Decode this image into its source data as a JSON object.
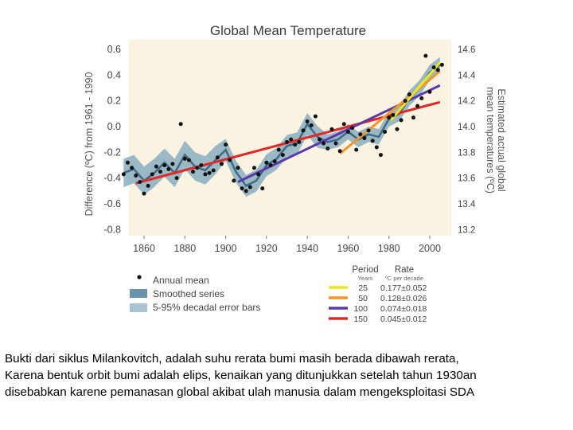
{
  "chart_data": {
    "type": "line",
    "title": "Global Mean Temperature",
    "ylabel": "Difference (ºC) from 1961 - 1990",
    "ylabel_right": [
      "Estimated actual global",
      "mean temperatures (ºC)"
    ],
    "xlim": [
      1850,
      2006
    ],
    "ylim": [
      -0.8,
      0.6
    ],
    "x_ticks": [
      "1860",
      "1880",
      "1900",
      "1920",
      "1940",
      "1960",
      "1980",
      "2000"
    ],
    "y_ticks": [
      "0.6",
      "0.4",
      "0.2",
      "0.0",
      "-0.2",
      "-0.4",
      "-0.6",
      "-0.8"
    ],
    "y_ticks_right": [
      "14.6",
      "14.4",
      "14.2",
      "14.0",
      "13.8",
      "13.6",
      "13.4",
      "13.2"
    ],
    "legend_left": [
      "Annual mean",
      "Smoothed series",
      "5-95% decadal error bars"
    ],
    "legend_right": {
      "period_header": "Period",
      "period_sub": "Years",
      "rate_header": "Rate",
      "rate_sub": "ºC per decade",
      "rows": [
        {
          "years": "25",
          "rate": "0.177±0.052",
          "color": "#f0e81e"
        },
        {
          "years": "50",
          "rate": "0.128±0.026",
          "color": "#f0962a"
        },
        {
          "years": "100",
          "rate": "0.074±0.018",
          "color": "#5a3aa8"
        },
        {
          "years": "150",
          "rate": "0.045±0.012",
          "color": "#e02828"
        }
      ]
    },
    "series": [
      {
        "name": "Smoothed series",
        "x": [
          1850,
          1855,
          1860,
          1865,
          1870,
          1875,
          1880,
          1885,
          1890,
          1895,
          1900,
          1905,
          1910,
          1915,
          1920,
          1925,
          1930,
          1935,
          1940,
          1945,
          1950,
          1955,
          1960,
          1965,
          1970,
          1975,
          1980,
          1985,
          1990,
          1995,
          2000,
          2005
        ],
        "values": [
          -0.36,
          -0.33,
          -0.42,
          -0.36,
          -0.28,
          -0.36,
          -0.22,
          -0.31,
          -0.34,
          -0.26,
          -0.18,
          -0.35,
          -0.46,
          -0.42,
          -0.3,
          -0.25,
          -0.15,
          -0.13,
          0.02,
          -0.08,
          -0.12,
          -0.1,
          -0.04,
          -0.1,
          -0.06,
          -0.08,
          0.06,
          0.1,
          0.22,
          0.3,
          0.42,
          0.48
        ]
      },
      {
        "name": "Annual mean",
        "x": [
          1850,
          1852,
          1854,
          1856,
          1858,
          1860,
          1862,
          1864,
          1866,
          1868,
          1870,
          1872,
          1874,
          1876,
          1878,
          1880,
          1882,
          1884,
          1886,
          1888,
          1890,
          1892,
          1894,
          1896,
          1898,
          1900,
          1902,
          1904,
          1906,
          1908,
          1910,
          1912,
          1914,
          1916,
          1918,
          1920,
          1922,
          1924,
          1926,
          1928,
          1930,
          1932,
          1934,
          1936,
          1938,
          1940,
          1942,
          1944,
          1946,
          1948,
          1950,
          1952,
          1954,
          1956,
          1958,
          1960,
          1962,
          1964,
          1966,
          1968,
          1970,
          1972,
          1974,
          1976,
          1978,
          1980,
          1982,
          1984,
          1986,
          1988,
          1990,
          1992,
          1994,
          1996,
          1998,
          2000,
          2002,
          2004,
          2006
        ],
        "values": [
          -0.37,
          -0.28,
          -0.32,
          -0.38,
          -0.43,
          -0.52,
          -0.46,
          -0.37,
          -0.31,
          -0.35,
          -0.3,
          -0.33,
          -0.29,
          -0.4,
          0.02,
          -0.25,
          -0.26,
          -0.35,
          -0.32,
          -0.3,
          -0.37,
          -0.36,
          -0.34,
          -0.24,
          -0.29,
          -0.14,
          -0.26,
          -0.42,
          -0.32,
          -0.48,
          -0.5,
          -0.47,
          -0.32,
          -0.37,
          -0.48,
          -0.28,
          -0.3,
          -0.27,
          -0.18,
          -0.22,
          -0.12,
          -0.1,
          -0.14,
          -0.12,
          -0.03,
          0.04,
          0.01,
          0.08,
          -0.1,
          -0.13,
          -0.17,
          -0.02,
          -0.13,
          -0.19,
          0.02,
          -0.04,
          -0.01,
          -0.18,
          -0.06,
          -0.09,
          -0.03,
          -0.11,
          -0.16,
          -0.22,
          -0.04,
          0.07,
          0.09,
          -0.02,
          0.05,
          0.2,
          0.25,
          0.07,
          0.16,
          0.22,
          0.55,
          0.27,
          0.46,
          0.44,
          0.48
        ]
      }
    ],
    "trends": [
      {
        "years": "150",
        "x": [
          1856,
          2005
        ],
        "y": [
          -0.44,
          0.19
        ],
        "color": "#e02828"
      },
      {
        "years": "100",
        "x": [
          1906,
          2005
        ],
        "y": [
          -0.43,
          0.32
        ],
        "color": "#5a3aa8"
      },
      {
        "years": "50",
        "x": [
          1956,
          2005
        ],
        "y": [
          -0.21,
          0.43
        ],
        "color": "#f0962a"
      },
      {
        "years": "25",
        "x": [
          1981,
          2005
        ],
        "y": [
          0.05,
          0.5
        ],
        "color": "#f0e81e"
      }
    ]
  },
  "caption_lines": [
    "Bukti dari siklus Milankovitch, adalah suhu rerata bumi masih berada dibawah rerata,",
    "Karena bentuk orbit bumi adalah elips, kenaikan yang ditunjukkan setelah tahun 1930an",
    "disebabkan karene pemanasan global akibat ulah manusia dalam mengeksploitasi SDA"
  ],
  "colors": {
    "plot_bg": "#fbf3e2",
    "band": "#8aaec0",
    "smooth": "#3e6a86",
    "dot": "#111111",
    "axis_text": "#444444"
  }
}
